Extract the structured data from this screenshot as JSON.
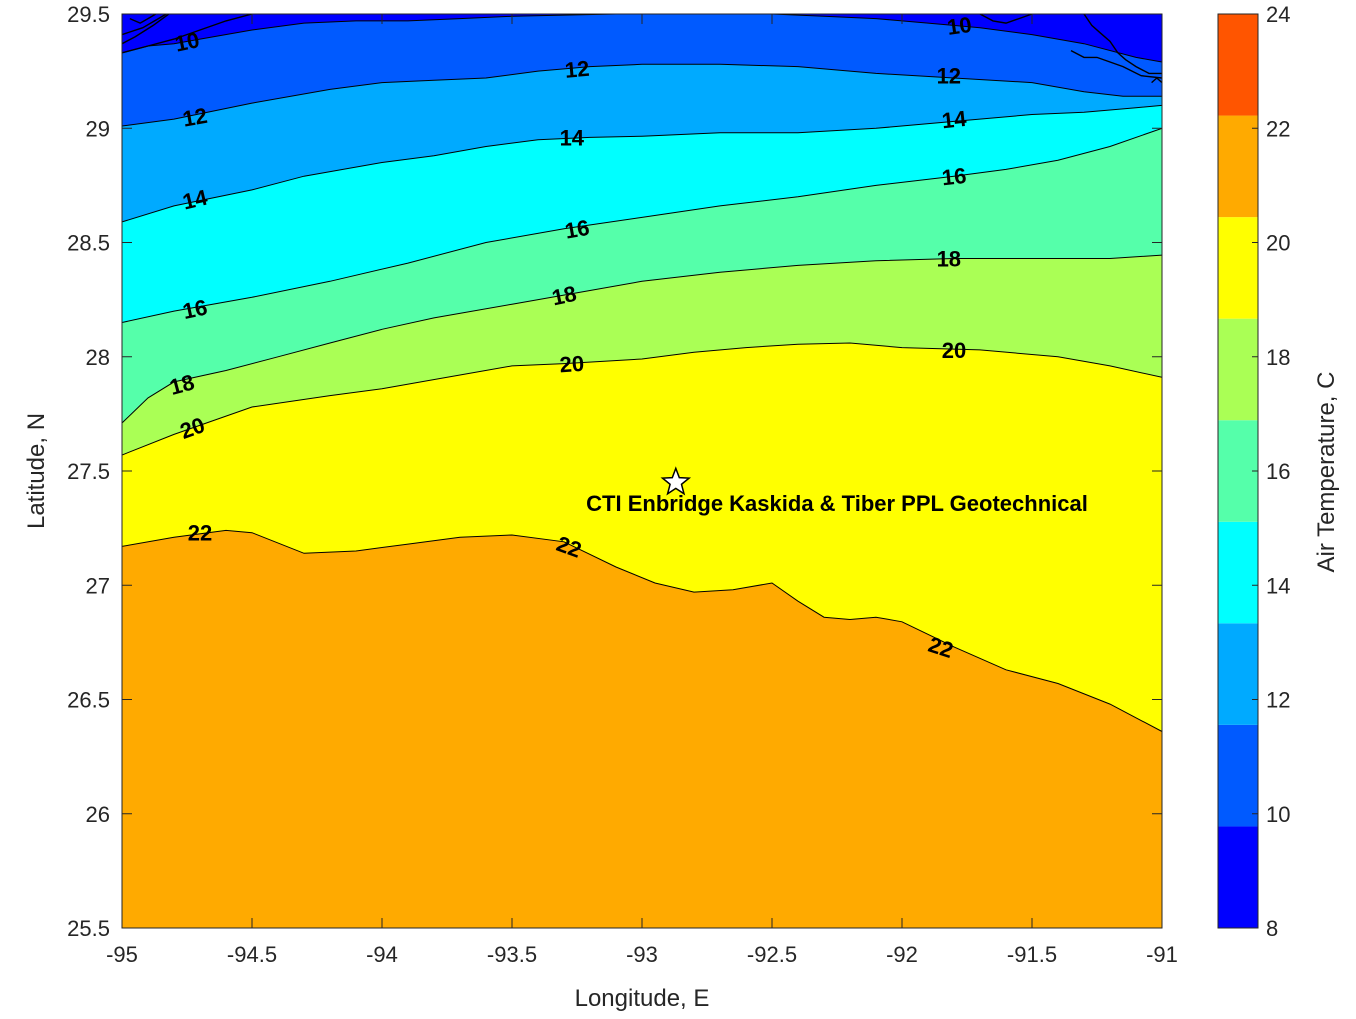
{
  "chart_data": {
    "type": "contourf",
    "title": "",
    "xlabel": "Longitude, E",
    "ylabel": "Latitude, N",
    "xlim": [
      -95,
      -91
    ],
    "ylim": [
      25.5,
      29.5
    ],
    "xticks": [
      -95,
      -94.5,
      -94,
      -93.5,
      -93,
      -92.5,
      -92,
      -91.5,
      -91
    ],
    "xtick_labels": [
      "-95",
      "-94.5",
      "-94",
      "-93.5",
      "-93",
      "-92.5",
      "-92",
      "-91.5",
      "-91"
    ],
    "yticks": [
      25.5,
      26,
      26.5,
      27,
      27.5,
      28,
      28.5,
      29,
      29.5
    ],
    "ytick_labels": [
      "25.5",
      "26",
      "26.5",
      "27",
      "27.5",
      "28",
      "28.5",
      "29",
      "29.5"
    ],
    "colorbar": {
      "label": "Air Temperature, C",
      "limits": [
        8,
        24
      ],
      "ticks": [
        8,
        10,
        12,
        14,
        16,
        18,
        20,
        22,
        24
      ],
      "tick_labels": [
        "8",
        "10",
        "12",
        "14",
        "16",
        "18",
        "20",
        "22",
        "24"
      ],
      "colors": [
        "#0000ff",
        "#005aff",
        "#00aaff",
        "#00ffff",
        "#55ffaa",
        "#aaff55",
        "#ffff00",
        "#ffaa00",
        "#ff5500"
      ]
    },
    "fill_colors": {
      "c22": "#ffaa00",
      "c20": "#ffff00",
      "c18": "#aaff55",
      "c16": "#55ffaa",
      "c14": "#00ffff",
      "c12": "#00aaff",
      "c10": "#005aff",
      "c8": "#0000ff"
    },
    "contours": [
      {
        "level": 22,
        "lon": [
          -95,
          -94.8,
          -94.6,
          -94.5,
          -94.3,
          -94.1,
          -93.9,
          -93.7,
          -93.5,
          -93.3,
          -93.1,
          -92.95,
          -92.8,
          -92.65,
          -92.5,
          -92.4,
          -92.3,
          -92.2,
          -92.1,
          -92.0,
          -91.8,
          -91.6,
          -91.4,
          -91.2,
          -91.0
        ],
        "lat": [
          27.17,
          27.21,
          27.24,
          27.23,
          27.14,
          27.15,
          27.18,
          27.21,
          27.22,
          27.19,
          27.08,
          27.01,
          26.97,
          26.98,
          27.01,
          26.93,
          26.86,
          26.85,
          26.86,
          26.84,
          26.73,
          26.63,
          26.57,
          26.48,
          26.36
        ]
      },
      {
        "level": 20,
        "lon": [
          -95,
          -94.8,
          -94.5,
          -94.2,
          -94.0,
          -93.7,
          -93.5,
          -93.3,
          -93.0,
          -92.8,
          -92.6,
          -92.4,
          -92.2,
          -92.0,
          -91.7,
          -91.4,
          -91.2,
          -91.0
        ],
        "lat": [
          27.57,
          27.66,
          27.78,
          27.83,
          27.86,
          27.92,
          27.96,
          27.97,
          27.99,
          28.02,
          28.04,
          28.055,
          28.06,
          28.04,
          28.03,
          28.0,
          27.96,
          27.91
        ]
      },
      {
        "level": 18,
        "lon": [
          -95,
          -94.9,
          -94.8,
          -94.6,
          -94.4,
          -94.2,
          -94.0,
          -93.8,
          -93.5,
          -93.2,
          -93.0,
          -92.7,
          -92.4,
          -92.1,
          -91.8,
          -91.5,
          -91.2,
          -91.0
        ],
        "lat": [
          27.71,
          27.82,
          27.89,
          27.94,
          28.0,
          28.06,
          28.12,
          28.17,
          28.23,
          28.29,
          28.33,
          28.37,
          28.4,
          28.42,
          28.43,
          28.43,
          28.43,
          28.445
        ]
      },
      {
        "level": 16,
        "lon": [
          -95,
          -94.8,
          -94.5,
          -94.2,
          -93.9,
          -93.6,
          -93.3,
          -93.0,
          -92.7,
          -92.4,
          -92.1,
          -91.8,
          -91.6,
          -91.4,
          -91.2,
          -91.0
        ],
        "lat": [
          28.15,
          28.2,
          28.26,
          28.33,
          28.41,
          28.5,
          28.56,
          28.61,
          28.66,
          28.7,
          28.75,
          28.79,
          28.82,
          28.86,
          28.92,
          29.0
        ]
      },
      {
        "level": 14,
        "lon": [
          -95,
          -94.8,
          -94.5,
          -94.3,
          -94.0,
          -93.8,
          -93.6,
          -93.4,
          -93.2,
          -93.0,
          -92.7,
          -92.4,
          -92.1,
          -91.8,
          -91.5,
          -91.3,
          -91.1,
          -91.0
        ],
        "lat": [
          28.59,
          28.66,
          28.73,
          28.79,
          28.85,
          28.88,
          28.92,
          28.95,
          28.96,
          28.965,
          28.98,
          28.98,
          29.0,
          29.03,
          29.06,
          29.07,
          29.09,
          29.1
        ]
      },
      {
        "level": 12,
        "lon": [
          -95,
          -94.8,
          -94.5,
          -94.2,
          -94.0,
          -93.8,
          -93.6,
          -93.4,
          -93.2,
          -93.0,
          -92.7,
          -92.4,
          -92.1,
          -91.8,
          -91.5,
          -91.3,
          -91.15,
          -91.0
        ],
        "lat": [
          29.01,
          29.04,
          29.11,
          29.17,
          29.2,
          29.21,
          29.22,
          29.25,
          29.27,
          29.28,
          29.28,
          29.27,
          29.24,
          29.22,
          29.2,
          29.16,
          29.14,
          29.14
        ]
      },
      {
        "level": 10,
        "lon": [
          -95,
          -94.9,
          -94.8,
          -94.7,
          -94.5,
          -94.3,
          -94.1,
          -93.9,
          -93.7,
          -93.5,
          -93.3,
          -93.1,
          -92.9,
          -92.7,
          -92.5,
          -92.3,
          -92.1,
          -91.9,
          -91.7,
          -91.5,
          -91.3,
          -91.1,
          -91.0
        ],
        "lat": [
          29.33,
          29.36,
          29.37,
          29.39,
          29.43,
          29.46,
          29.47,
          29.47,
          29.48,
          29.49,
          29.495,
          29.5,
          29.5,
          29.5,
          29.5,
          29.49,
          29.48,
          29.46,
          29.44,
          29.41,
          29.37,
          29.31,
          29.29
        ]
      }
    ],
    "contour_labels": [
      {
        "text": "22",
        "lon": -94.7,
        "lat": 27.23,
        "angle": 0
      },
      {
        "text": "22",
        "lon": -93.28,
        "lat": 27.17,
        "angle": 20
      },
      {
        "text": "22",
        "lon": -91.85,
        "lat": 26.73,
        "angle": 18
      },
      {
        "text": "20",
        "lon": -94.73,
        "lat": 27.69,
        "angle": -20
      },
      {
        "text": "20",
        "lon": -93.27,
        "lat": 27.97,
        "angle": -4
      },
      {
        "text": "20",
        "lon": -91.8,
        "lat": 28.03,
        "angle": 0
      },
      {
        "text": "18",
        "lon": -94.77,
        "lat": 27.88,
        "angle": -15
      },
      {
        "text": "18",
        "lon": -93.3,
        "lat": 28.27,
        "angle": -12
      },
      {
        "text": "18",
        "lon": -91.82,
        "lat": 28.43,
        "angle": 0
      },
      {
        "text": "16",
        "lon": -94.72,
        "lat": 28.21,
        "angle": -12
      },
      {
        "text": "16",
        "lon": -93.25,
        "lat": 28.56,
        "angle": -10
      },
      {
        "text": "16",
        "lon": -91.8,
        "lat": 28.79,
        "angle": -6
      },
      {
        "text": "14",
        "lon": -94.72,
        "lat": 28.69,
        "angle": -13
      },
      {
        "text": "14",
        "lon": -93.27,
        "lat": 28.96,
        "angle": 0
      },
      {
        "text": "14",
        "lon": -91.8,
        "lat": 29.04,
        "angle": -6
      },
      {
        "text": "12",
        "lon": -94.72,
        "lat": 29.05,
        "angle": -10
      },
      {
        "text": "12",
        "lon": -93.25,
        "lat": 29.26,
        "angle": -5
      },
      {
        "text": "12",
        "lon": -91.82,
        "lat": 29.23,
        "angle": 0
      },
      {
        "text": "10",
        "lon": -94.75,
        "lat": 29.38,
        "angle": -12
      },
      {
        "text": "10",
        "lon": -91.78,
        "lat": 29.45,
        "angle": -8
      }
    ],
    "site_marker": {
      "lon": -92.87,
      "lat": 27.45,
      "shape": "star"
    },
    "annotation": {
      "text": "CTI Enbridge  Kaskida & Tiber PPL Geotechnical",
      "lon": -92.25,
      "lat": 27.36
    }
  }
}
